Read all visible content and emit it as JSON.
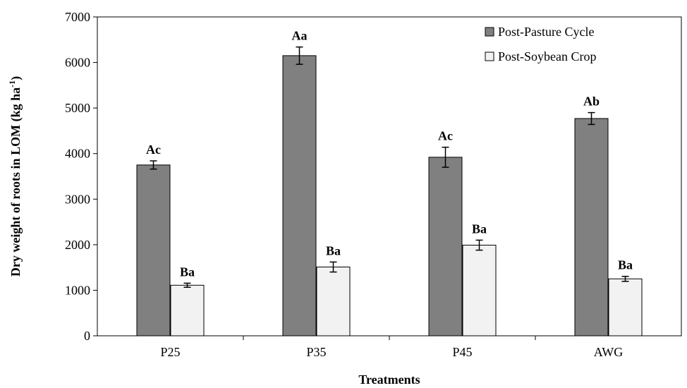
{
  "chart_data": {
    "type": "bar",
    "title": "",
    "xlabel": "Treatments",
    "ylabel": "Dry weight of roots in LOM (kg ha",
    "ylabel_sup": "-1",
    "ylabel_tail": ")",
    "categories": [
      "P25",
      "P35",
      "P45",
      "AWG"
    ],
    "ylim": [
      0,
      7000
    ],
    "yticks": [
      0,
      1000,
      2000,
      3000,
      4000,
      5000,
      6000,
      7000
    ],
    "grid": false,
    "legend_position": "top-right",
    "series": [
      {
        "name": "Post-Pasture Cycle",
        "color": "#808080",
        "values": [
          3750,
          6150,
          3920,
          4770
        ],
        "errors": [
          90,
          190,
          220,
          130
        ],
        "labels": [
          "Ac",
          "Aa",
          "Ac",
          "Ab"
        ]
      },
      {
        "name": "Post-Soybean Crop",
        "color": "#f2f2f2",
        "values": [
          1110,
          1510,
          1990,
          1250
        ],
        "errors": [
          45,
          110,
          110,
          55
        ],
        "labels": [
          "Ba",
          "Ba",
          "Ba",
          "Ba"
        ]
      }
    ]
  }
}
